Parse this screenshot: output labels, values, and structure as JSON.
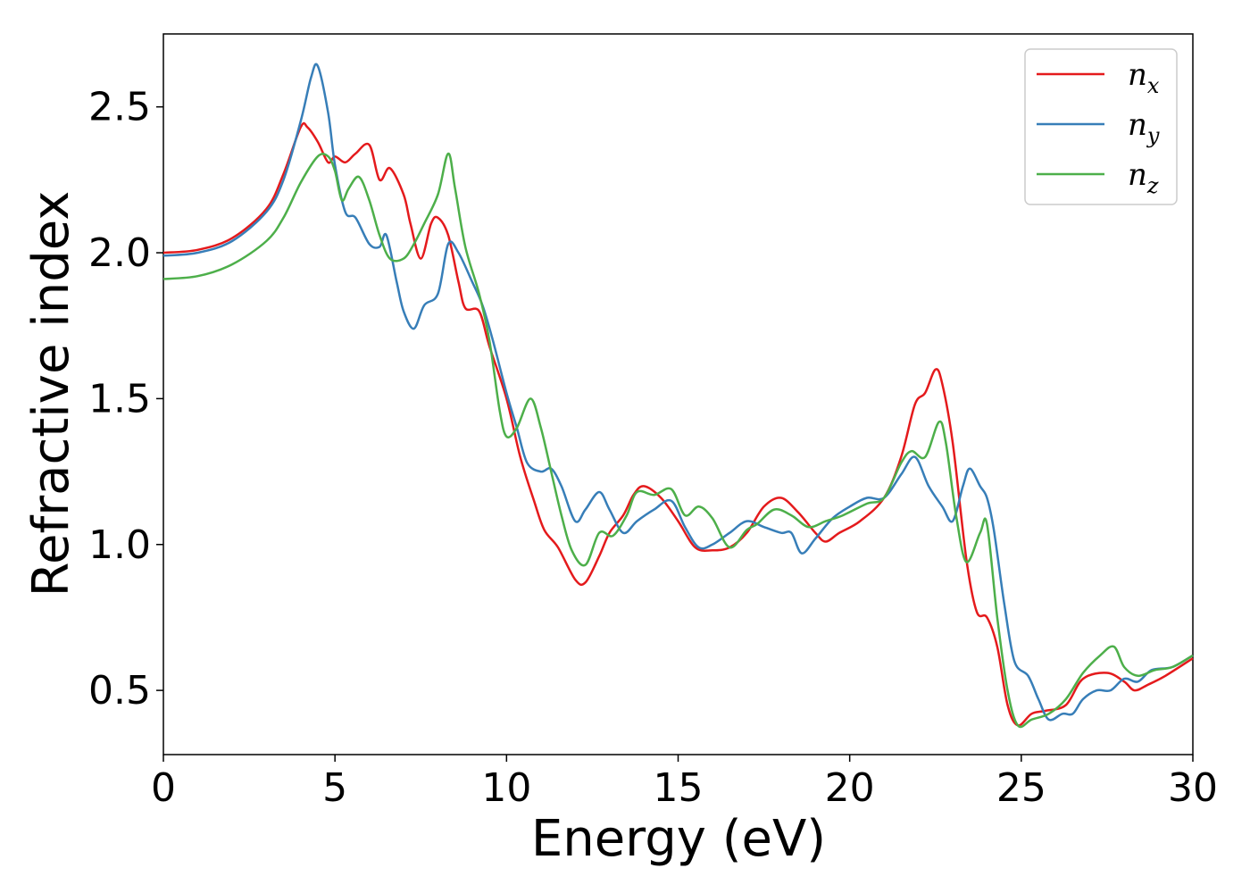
{
  "chart_data": {
    "type": "line",
    "xlabel": "Energy (eV)",
    "ylabel": "Refractive index",
    "xlim": [
      0,
      30
    ],
    "ylim": [
      0.28,
      2.75
    ],
    "xticks": [
      0,
      5,
      10,
      15,
      20,
      25,
      30
    ],
    "xtick_labels": [
      "0",
      "5",
      "10",
      "15",
      "20",
      "25",
      "30"
    ],
    "yticks": [
      0.5,
      1.0,
      1.5,
      2.0,
      2.5
    ],
    "ytick_labels": [
      "0.5",
      "1.0",
      "1.5",
      "2.0",
      "2.5"
    ],
    "grid": false,
    "legend_position": "top-right",
    "series": [
      {
        "name": "n",
        "subscript": "x",
        "color": "#e41a1c",
        "points": [
          [
            0,
            2.0
          ],
          [
            1,
            2.01
          ],
          [
            2,
            2.05
          ],
          [
            3,
            2.15
          ],
          [
            3.5,
            2.27
          ],
          [
            4.0,
            2.43
          ],
          [
            4.2,
            2.43
          ],
          [
            4.5,
            2.38
          ],
          [
            4.8,
            2.31
          ],
          [
            5.0,
            2.33
          ],
          [
            5.3,
            2.31
          ],
          [
            5.6,
            2.34
          ],
          [
            6.0,
            2.37
          ],
          [
            6.3,
            2.25
          ],
          [
            6.6,
            2.29
          ],
          [
            7.0,
            2.2
          ],
          [
            7.2,
            2.1
          ],
          [
            7.5,
            1.98
          ],
          [
            7.8,
            2.1
          ],
          [
            8.0,
            2.12
          ],
          [
            8.3,
            2.06
          ],
          [
            8.6,
            1.9
          ],
          [
            8.8,
            1.81
          ],
          [
            9.2,
            1.8
          ],
          [
            9.5,
            1.68
          ],
          [
            10.0,
            1.5
          ],
          [
            10.4,
            1.3
          ],
          [
            10.8,
            1.15
          ],
          [
            11.1,
            1.05
          ],
          [
            11.5,
            0.99
          ],
          [
            12.0,
            0.88
          ],
          [
            12.3,
            0.87
          ],
          [
            12.7,
            0.96
          ],
          [
            13.0,
            1.04
          ],
          [
            13.4,
            1.1
          ],
          [
            13.7,
            1.17
          ],
          [
            14.0,
            1.2
          ],
          [
            14.5,
            1.16
          ],
          [
            15.0,
            1.08
          ],
          [
            15.5,
            0.99
          ],
          [
            16.0,
            0.98
          ],
          [
            16.5,
            0.99
          ],
          [
            17.0,
            1.04
          ],
          [
            17.5,
            1.13
          ],
          [
            18.0,
            1.16
          ],
          [
            18.5,
            1.11
          ],
          [
            19.0,
            1.04
          ],
          [
            19.3,
            1.01
          ],
          [
            19.7,
            1.04
          ],
          [
            20.3,
            1.08
          ],
          [
            21.0,
            1.16
          ],
          [
            21.5,
            1.3
          ],
          [
            21.9,
            1.48
          ],
          [
            22.2,
            1.52
          ],
          [
            22.5,
            1.6
          ],
          [
            22.7,
            1.55
          ],
          [
            23.0,
            1.35
          ],
          [
            23.4,
            0.95
          ],
          [
            23.7,
            0.77
          ],
          [
            24.0,
            0.75
          ],
          [
            24.3,
            0.65
          ],
          [
            24.6,
            0.45
          ],
          [
            24.9,
            0.38
          ],
          [
            25.3,
            0.42
          ],
          [
            25.7,
            0.43
          ],
          [
            26.3,
            0.45
          ],
          [
            26.8,
            0.54
          ],
          [
            27.5,
            0.56
          ],
          [
            28.0,
            0.53
          ],
          [
            28.3,
            0.5
          ],
          [
            28.7,
            0.52
          ],
          [
            29.2,
            0.55
          ],
          [
            30,
            0.61
          ]
        ]
      },
      {
        "name": "n",
        "subscript": "y",
        "color": "#377eb8",
        "points": [
          [
            0,
            1.99
          ],
          [
            1,
            2.0
          ],
          [
            2,
            2.04
          ],
          [
            3,
            2.14
          ],
          [
            3.5,
            2.25
          ],
          [
            4.0,
            2.45
          ],
          [
            4.3,
            2.6
          ],
          [
            4.5,
            2.64
          ],
          [
            4.8,
            2.48
          ],
          [
            5.0,
            2.3
          ],
          [
            5.3,
            2.14
          ],
          [
            5.6,
            2.12
          ],
          [
            6.0,
            2.03
          ],
          [
            6.3,
            2.02
          ],
          [
            6.5,
            2.06
          ],
          [
            6.8,
            1.9
          ],
          [
            7.0,
            1.8
          ],
          [
            7.3,
            1.74
          ],
          [
            7.6,
            1.82
          ],
          [
            8.0,
            1.86
          ],
          [
            8.3,
            2.03
          ],
          [
            8.6,
            2.0
          ],
          [
            9.0,
            1.9
          ],
          [
            9.3,
            1.82
          ],
          [
            9.6,
            1.7
          ],
          [
            10.0,
            1.52
          ],
          [
            10.3,
            1.4
          ],
          [
            10.6,
            1.28
          ],
          [
            11.0,
            1.25
          ],
          [
            11.3,
            1.26
          ],
          [
            11.6,
            1.2
          ],
          [
            12.0,
            1.08
          ],
          [
            12.3,
            1.12
          ],
          [
            12.7,
            1.18
          ],
          [
            13.0,
            1.12
          ],
          [
            13.4,
            1.04
          ],
          [
            13.8,
            1.08
          ],
          [
            14.3,
            1.12
          ],
          [
            14.8,
            1.15
          ],
          [
            15.2,
            1.06
          ],
          [
            15.6,
            0.99
          ],
          [
            16.0,
            1.0
          ],
          [
            16.5,
            1.04
          ],
          [
            17.0,
            1.08
          ],
          [
            17.5,
            1.06
          ],
          [
            18.0,
            1.04
          ],
          [
            18.3,
            1.04
          ],
          [
            18.6,
            0.97
          ],
          [
            19.0,
            1.02
          ],
          [
            19.5,
            1.09
          ],
          [
            20.0,
            1.13
          ],
          [
            20.5,
            1.16
          ],
          [
            21.0,
            1.16
          ],
          [
            21.5,
            1.24
          ],
          [
            21.9,
            1.3
          ],
          [
            22.3,
            1.2
          ],
          [
            22.7,
            1.13
          ],
          [
            23.0,
            1.08
          ],
          [
            23.3,
            1.2
          ],
          [
            23.5,
            1.26
          ],
          [
            23.8,
            1.2
          ],
          [
            24.0,
            1.16
          ],
          [
            24.2,
            1.05
          ],
          [
            24.5,
            0.8
          ],
          [
            24.8,
            0.6
          ],
          [
            25.2,
            0.55
          ],
          [
            25.5,
            0.47
          ],
          [
            25.8,
            0.4
          ],
          [
            26.2,
            0.42
          ],
          [
            26.5,
            0.42
          ],
          [
            26.8,
            0.47
          ],
          [
            27.2,
            0.5
          ],
          [
            27.6,
            0.5
          ],
          [
            28.0,
            0.54
          ],
          [
            28.4,
            0.53
          ],
          [
            28.8,
            0.57
          ],
          [
            29.4,
            0.58
          ],
          [
            30,
            0.62
          ]
        ]
      },
      {
        "name": "n",
        "subscript": "z",
        "color": "#4daf4a",
        "points": [
          [
            0,
            1.91
          ],
          [
            1,
            1.92
          ],
          [
            2,
            1.96
          ],
          [
            3,
            2.04
          ],
          [
            3.5,
            2.12
          ],
          [
            4.0,
            2.24
          ],
          [
            4.5,
            2.33
          ],
          [
            4.8,
            2.33
          ],
          [
            5.0,
            2.28
          ],
          [
            5.2,
            2.18
          ],
          [
            5.4,
            2.22
          ],
          [
            5.7,
            2.26
          ],
          [
            6.0,
            2.18
          ],
          [
            6.3,
            2.06
          ],
          [
            6.6,
            1.98
          ],
          [
            7.0,
            1.98
          ],
          [
            7.3,
            2.03
          ],
          [
            7.6,
            2.1
          ],
          [
            8.0,
            2.2
          ],
          [
            8.3,
            2.34
          ],
          [
            8.5,
            2.22
          ],
          [
            8.8,
            2.02
          ],
          [
            9.2,
            1.86
          ],
          [
            9.5,
            1.7
          ],
          [
            9.8,
            1.46
          ],
          [
            10.0,
            1.37
          ],
          [
            10.3,
            1.4
          ],
          [
            10.7,
            1.5
          ],
          [
            11.0,
            1.4
          ],
          [
            11.3,
            1.25
          ],
          [
            11.6,
            1.1
          ],
          [
            11.9,
            0.98
          ],
          [
            12.3,
            0.93
          ],
          [
            12.7,
            1.04
          ],
          [
            13.1,
            1.03
          ],
          [
            13.5,
            1.1
          ],
          [
            13.8,
            1.18
          ],
          [
            14.3,
            1.17
          ],
          [
            14.8,
            1.19
          ],
          [
            15.2,
            1.1
          ],
          [
            15.6,
            1.13
          ],
          [
            16.0,
            1.09
          ],
          [
            16.5,
            0.99
          ],
          [
            17.0,
            1.05
          ],
          [
            17.3,
            1.07
          ],
          [
            17.8,
            1.12
          ],
          [
            18.3,
            1.1
          ],
          [
            18.8,
            1.06
          ],
          [
            19.3,
            1.08
          ],
          [
            19.8,
            1.1
          ],
          [
            20.5,
            1.14
          ],
          [
            21.0,
            1.16
          ],
          [
            21.5,
            1.28
          ],
          [
            21.8,
            1.32
          ],
          [
            22.2,
            1.3
          ],
          [
            22.6,
            1.42
          ],
          [
            22.8,
            1.35
          ],
          [
            23.1,
            1.1
          ],
          [
            23.4,
            0.94
          ],
          [
            23.8,
            1.04
          ],
          [
            24.0,
            1.07
          ],
          [
            24.3,
            0.75
          ],
          [
            24.6,
            0.5
          ],
          [
            24.9,
            0.38
          ],
          [
            25.3,
            0.4
          ],
          [
            25.8,
            0.42
          ],
          [
            26.3,
            0.47
          ],
          [
            26.8,
            0.56
          ],
          [
            27.3,
            0.62
          ],
          [
            27.7,
            0.65
          ],
          [
            28.0,
            0.58
          ],
          [
            28.4,
            0.55
          ],
          [
            28.9,
            0.57
          ],
          [
            29.4,
            0.58
          ],
          [
            30,
            0.62
          ]
        ]
      }
    ]
  }
}
